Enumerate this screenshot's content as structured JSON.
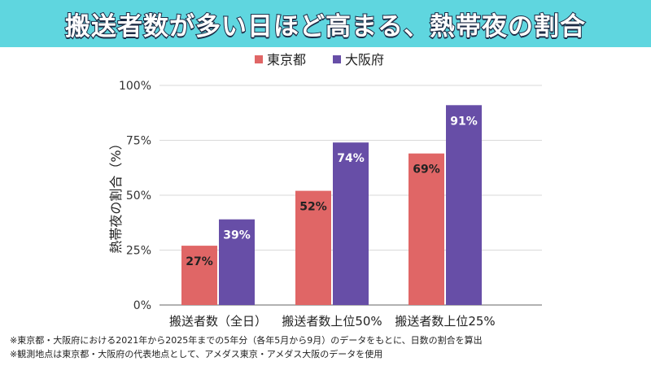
{
  "title": "搬送者数が多い日ほど高まる、熱帯夜の割合",
  "notes": [
    "※東京都・大阪府における2021年から2025年までの5年分（各年5月から9月）のデータをもとに、日数の割合を算出",
    "※観測地点は東京都・大阪府の代表地点として、アメダス東京・アメダス大阪のデータを使用"
  ],
  "colors": {
    "title_bg": "#5fd6df",
    "tokyo": "#e06666",
    "osaka": "#674ea7",
    "grid": "#d9d9d9"
  },
  "chart_data": {
    "type": "bar",
    "categories": [
      "搬送者数（全日）",
      "搬送者数上位50%",
      "搬送者数上位25%"
    ],
    "series": [
      {
        "name": "東京都",
        "values": [
          27,
          52,
          69
        ],
        "labels": [
          "27%",
          "52%",
          "69%"
        ]
      },
      {
        "name": "大阪府",
        "values": [
          39,
          74,
          91
        ],
        "labels": [
          "39%",
          "74%",
          "91%"
        ]
      }
    ],
    "ylabel": "熱帯夜の割合（%）",
    "ylim": [
      0,
      100
    ],
    "yticks": [
      0,
      25,
      50,
      75,
      100
    ],
    "ytick_labels": [
      "0%",
      "25%",
      "50%",
      "75%",
      "100%"
    ],
    "legend_position": "top",
    "grid": true
  }
}
